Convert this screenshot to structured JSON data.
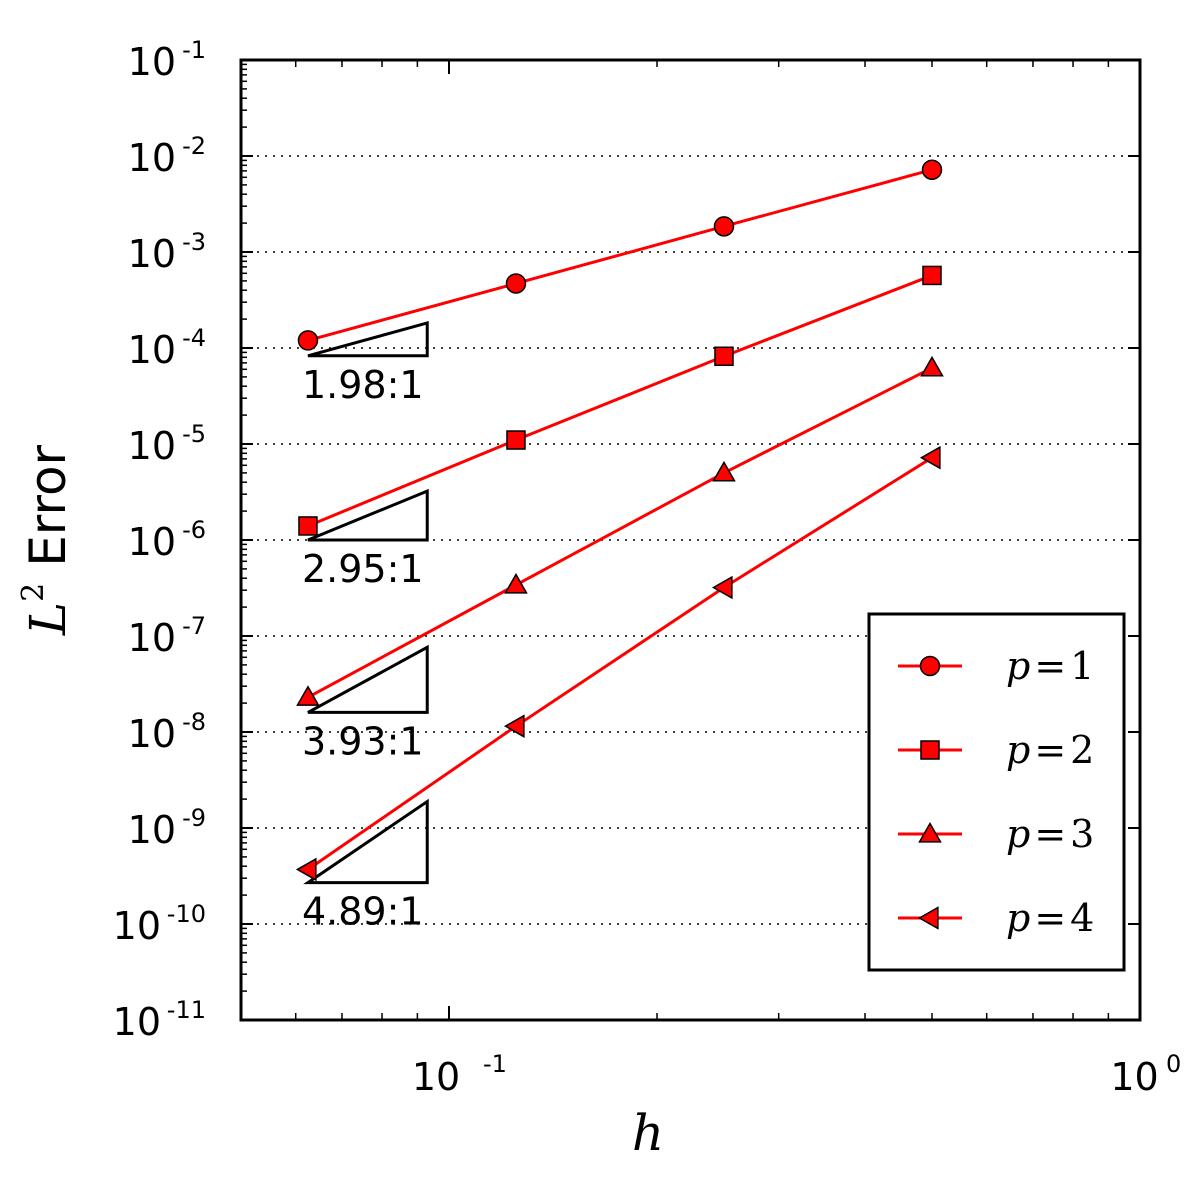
{
  "chart_data": {
    "type": "line",
    "xscale": "log",
    "yscale": "log",
    "xlim": [
      0.05,
      1
    ],
    "ylim": [
      1e-11,
      0.1
    ],
    "xlabel": "h",
    "ylabel": {
      "symbol": "L",
      "superscript": "2",
      "text": "Error"
    },
    "x_ticks": [
      {
        "value": 0.1,
        "base": "10",
        "exp": "-1"
      },
      {
        "value": 1,
        "base": "10",
        "exp": "0"
      }
    ],
    "y_ticks": [
      {
        "value": 0.1,
        "base": "10",
        "exp": "-1"
      },
      {
        "value": 0.01,
        "base": "10",
        "exp": "-2"
      },
      {
        "value": 0.001,
        "base": "10",
        "exp": "-3"
      },
      {
        "value": 0.0001,
        "base": "10",
        "exp": "-4"
      },
      {
        "value": 1e-05,
        "base": "10",
        "exp": "-5"
      },
      {
        "value": 1e-06,
        "base": "10",
        "exp": "-6"
      },
      {
        "value": 1e-07,
        "base": "10",
        "exp": "-7"
      },
      {
        "value": 1e-08,
        "base": "10",
        "exp": "-8"
      },
      {
        "value": 1e-09,
        "base": "10",
        "exp": "-9"
      },
      {
        "value": 1e-10,
        "base": "10",
        "exp": "-10"
      },
      {
        "value": 1e-11,
        "base": "10",
        "exp": "-11"
      }
    ],
    "grid": {
      "y_major": true,
      "x_major": false,
      "style": "dotted"
    },
    "line_color": "#ff0000",
    "marker_fill": "#ff0000",
    "marker_edge": "#000000",
    "legend_position": "lower-right",
    "series": [
      {
        "name": "p=1",
        "p": "1",
        "marker": "circle",
        "x": [
          0.0625,
          0.125,
          0.25,
          0.5
        ],
        "y": [
          0.00012,
          0.00047,
          0.00185,
          0.0072
        ]
      },
      {
        "name": "p=2",
        "p": "2",
        "marker": "square",
        "x": [
          0.0625,
          0.125,
          0.25,
          0.5
        ],
        "y": [
          1.4e-06,
          1.1e-05,
          8.2e-05,
          0.00057
        ]
      },
      {
        "name": "p=3",
        "p": "3",
        "marker": "triangle-up",
        "x": [
          0.0625,
          0.125,
          0.25,
          0.5
        ],
        "y": [
          2.3e-08,
          3.4e-07,
          5e-06,
          6.2e-05
        ]
      },
      {
        "name": "p=4",
        "p": "4",
        "marker": "triangle-left",
        "x": [
          0.0625,
          0.125,
          0.25,
          0.5
        ],
        "y": [
          3.7e-10,
          1.15e-08,
          3.2e-07,
          7.2e-06
        ]
      }
    ],
    "slope_annotations": [
      {
        "label": "1.98:1",
        "x0": 0.0625,
        "x1": 0.093,
        "y0": 8.3e-05,
        "slope": 1.98
      },
      {
        "label": "2.95:1",
        "x0": 0.0625,
        "x1": 0.093,
        "y0": 1e-06,
        "slope": 2.95
      },
      {
        "label": "3.93:1",
        "x0": 0.0625,
        "x1": 0.093,
        "y0": 1.6e-08,
        "slope": 3.93
      },
      {
        "label": "4.89:1",
        "x0": 0.0625,
        "x1": 0.093,
        "y0": 2.7e-10,
        "slope": 4.89
      }
    ]
  }
}
